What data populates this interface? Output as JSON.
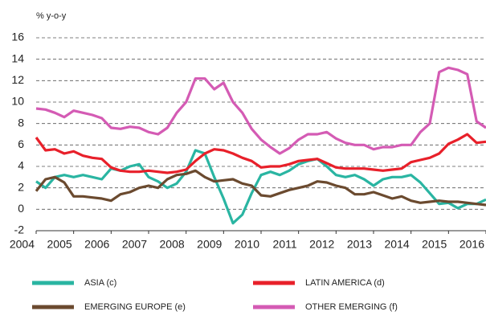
{
  "chart_data": {
    "type": "line",
    "y_label": "% y-o-y",
    "x": [
      2004,
      2004.25,
      2004.5,
      2004.75,
      2005,
      2005.25,
      2005.5,
      2005.75,
      2006,
      2006.25,
      2006.5,
      2006.75,
      2007,
      2007.25,
      2007.5,
      2007.75,
      2008,
      2008.25,
      2008.5,
      2008.75,
      2009,
      2009.25,
      2009.5,
      2009.75,
      2010,
      2010.25,
      2010.5,
      2010.75,
      2011,
      2011.25,
      2011.5,
      2011.75,
      2012,
      2012.25,
      2012.5,
      2012.75,
      2013,
      2013.25,
      2013.5,
      2013.75,
      2014,
      2014.25,
      2014.5,
      2014.75,
      2015,
      2015.25,
      2015.5,
      2015.75,
      2016
    ],
    "series": [
      {
        "name": "ASIA (c)",
        "color": "#2ab5a2",
        "values": [
          2.6,
          2.0,
          3.0,
          3.2,
          3.0,
          3.2,
          3.0,
          2.8,
          3.8,
          3.6,
          4.0,
          4.2,
          3.0,
          2.6,
          2.0,
          2.4,
          3.5,
          5.5,
          5.2,
          3.0,
          1.0,
          -1.3,
          -0.5,
          1.5,
          3.2,
          3.5,
          3.2,
          3.6,
          4.2,
          4.5,
          4.7,
          4.0,
          3.2,
          3.0,
          3.2,
          2.8,
          2.2,
          2.8,
          3.0,
          3.0,
          3.2,
          2.5,
          1.5,
          0.5,
          0.6,
          0.1,
          0.5,
          0.5,
          0.9
        ]
      },
      {
        "name": "LATIN AMERICA (d)",
        "color": "#e8202a",
        "values": [
          6.7,
          5.5,
          5.6,
          5.2,
          5.4,
          5.0,
          4.8,
          4.7,
          3.9,
          3.6,
          3.5,
          3.5,
          3.6,
          3.5,
          3.4,
          3.5,
          3.7,
          4.5,
          5.2,
          5.6,
          5.5,
          5.2,
          4.8,
          4.5,
          3.9,
          4.0,
          4.0,
          4.2,
          4.5,
          4.6,
          4.7,
          4.3,
          3.9,
          3.8,
          3.8,
          3.8,
          3.7,
          3.6,
          3.7,
          3.8,
          4.4,
          4.6,
          4.8,
          5.2,
          6.1,
          6.5,
          7.0,
          6.2,
          6.3
        ]
      },
      {
        "name": "EMERGING EUROPE (e)",
        "color": "#6b4a2f",
        "values": [
          1.7,
          2.8,
          3.0,
          2.5,
          1.2,
          1.2,
          1.1,
          1.0,
          0.8,
          1.4,
          1.6,
          2.0,
          2.2,
          2.0,
          2.8,
          3.2,
          3.3,
          3.6,
          3.0,
          2.6,
          2.7,
          2.8,
          2.4,
          2.2,
          1.3,
          1.2,
          1.5,
          1.8,
          2.0,
          2.2,
          2.6,
          2.5,
          2.2,
          2.0,
          1.4,
          1.4,
          1.6,
          1.3,
          1.0,
          1.2,
          0.8,
          0.6,
          0.7,
          0.8,
          0.7,
          0.7,
          0.6,
          0.5,
          0.4
        ]
      },
      {
        "name": "OTHER EMERGING (f)",
        "color": "#d45bb4",
        "values": [
          9.4,
          9.3,
          9.0,
          8.6,
          9.2,
          9.0,
          8.8,
          8.5,
          7.6,
          7.5,
          7.7,
          7.6,
          7.2,
          7.0,
          7.6,
          9.0,
          10.0,
          12.2,
          12.2,
          11.2,
          11.8,
          10.0,
          9.0,
          7.5,
          6.5,
          5.8,
          5.2,
          5.7,
          6.5,
          7.0,
          7.0,
          7.2,
          6.6,
          6.2,
          6.0,
          6.0,
          5.6,
          5.8,
          5.8,
          6.0,
          6.0,
          7.2,
          8.0,
          12.8,
          13.2,
          13.0,
          12.6,
          8.2,
          7.6
        ]
      }
    ],
    "xlim": [
      2004,
      2016
    ],
    "xticks": [
      2004,
      2005,
      2006,
      2007,
      2008,
      2009,
      2010,
      2011,
      2012,
      2013,
      2014,
      2015,
      2016
    ],
    "ylim": [
      -2,
      16
    ],
    "yticks": [
      -2,
      0,
      2,
      4,
      6,
      8,
      10,
      12,
      14,
      16
    ],
    "grid": true
  }
}
